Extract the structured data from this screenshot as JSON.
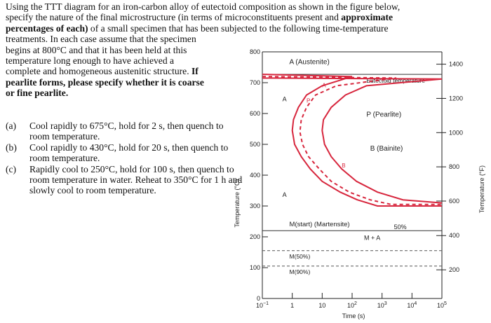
{
  "problem": {
    "lines": [
      [
        {
          "t": "Using the TTT diagram for an iron-carbon alloy of eutectoid composition as shown in the figure below,",
          "b": false
        }
      ],
      [
        {
          "t": "specify the nature of the final microstructure (in terms of microconstituents present and ",
          "b": false
        },
        {
          "t": "approximate",
          "b": true
        }
      ],
      [
        {
          "t": "percentages of each)",
          "b": true
        },
        {
          "t": " of a small specimen that has been subjected to the following time-temperature",
          "b": false
        }
      ],
      [
        {
          "t": "treatments.  In each case assume that the specimen",
          "b": false
        }
      ],
      [
        {
          "t": "begins at 800°C and that it has been held at this",
          "b": false
        }
      ],
      [
        {
          "t": "temperature long enough to have achieved a",
          "b": false
        }
      ],
      [
        {
          "t": "complete and homogeneous austenitic structure.  ",
          "b": false
        },
        {
          "t": "If",
          "b": true
        }
      ],
      [
        {
          "t": "pearlite forms, please specify whether it is coarse",
          "b": true
        }
      ],
      [
        {
          "t": "or fine pearlite.",
          "b": true
        }
      ]
    ]
  },
  "questions": [
    {
      "label": "(a)",
      "text": "Cool rapidly to 675°C, hold for 2 s, then quench to room temperature."
    },
    {
      "label": "(b)",
      "text": "Cool rapidly to 430°C, hold for 20 s, then quench to room temperature."
    },
    {
      "label": "(c)",
      "text": "Rapidly cool to 250°C, hold for 100 s, then quench to room temperature in water.  Reheat to 350°C for 1 h and slowly cool to room temperature."
    }
  ],
  "chart_data": {
    "type": "line",
    "xlabel": "Time (s)",
    "ylabel": "Temperature (°C)",
    "y2label": "Temperature (°F)",
    "x_scale": "log",
    "xlim": [
      0.1,
      100000
    ],
    "ylim": [
      0,
      800
    ],
    "x_ticks": [
      {
        "base": "10",
        "exp": "−1",
        "v": 0.1
      },
      {
        "base": "1",
        "exp": "",
        "v": 1
      },
      {
        "base": "10",
        "exp": "",
        "v": 10
      },
      {
        "base": "10",
        "exp": "2",
        "v": 100
      },
      {
        "base": "10",
        "exp": "3",
        "v": 1000
      },
      {
        "base": "10",
        "exp": "4",
        "v": 10000
      },
      {
        "base": "10",
        "exp": "5",
        "v": 100000
      }
    ],
    "y_ticks": [
      0,
      100,
      200,
      300,
      400,
      500,
      600,
      700,
      800
    ],
    "y2_ticks": [
      {
        "label": "1400",
        "c": 760
      },
      {
        "label": "1200",
        "c": 649
      },
      {
        "label": "1000",
        "c": 538
      },
      {
        "label": "800",
        "c": 427
      },
      {
        "label": "600",
        "c": 316
      },
      {
        "label": "400",
        "c": 204
      },
      {
        "label": "200",
        "c": 93
      }
    ],
    "eutectoid_temperature": 727,
    "eutectoid_label": "Eutectoid temperature",
    "lines": {
      "start": [
        [
          0.1,
          727
        ],
        [
          100,
          720
        ],
        [
          10,
          690
        ],
        [
          3,
          660
        ],
        [
          1.6,
          620
        ],
        [
          1.1,
          580
        ],
        [
          1,
          545
        ],
        [
          1.2,
          500
        ],
        [
          2,
          460
        ],
        [
          4,
          420
        ],
        [
          10,
          380
        ],
        [
          40,
          345
        ],
        [
          150,
          320
        ],
        [
          700,
          300
        ],
        [
          100000,
          300
        ]
      ],
      "fifty": [
        [
          0.1,
          720
        ],
        [
          3000,
          715
        ],
        [
          30,
          690
        ],
        [
          6,
          660
        ],
        [
          3,
          620
        ],
        [
          2,
          580
        ],
        [
          1.8,
          540
        ],
        [
          2.2,
          500
        ],
        [
          3.5,
          460
        ],
        [
          8,
          420
        ],
        [
          20,
          380
        ],
        [
          80,
          345
        ],
        [
          400,
          320
        ],
        [
          2000,
          305
        ],
        [
          100000,
          305
        ]
      ],
      "end": [
        [
          0.1,
          715
        ],
        [
          100000,
          712
        ],
        [
          300,
          690
        ],
        [
          60,
          660
        ],
        [
          20,
          620
        ],
        [
          11,
          580
        ],
        [
          10,
          545
        ],
        [
          12,
          500
        ],
        [
          20,
          460
        ],
        [
          45,
          420
        ],
        [
          140,
          380
        ],
        [
          700,
          345
        ],
        [
          5000,
          320
        ],
        [
          100000,
          310
        ]
      ],
      "ms": 220,
      "m50": 155,
      "m90": 105
    },
    "labels": {
      "austenite": "A (Austenite)",
      "pearlite": "P (Pearlite)",
      "bainite": "B (Bainite)",
      "a_upper": "A",
      "a_lower": "A",
      "mstart": "M(start) (Martensite)",
      "mplusa": "M + A",
      "m50": "M(50%)",
      "m90": "M(90%)",
      "fifty_pct": "50%",
      "curve_a": "A",
      "curve_p": "P",
      "curve_b": "B"
    },
    "line_colors": {
      "start": "#d7263d",
      "fifty": "#d7263d",
      "end": "#d7263d",
      "grid": "#333333"
    }
  }
}
